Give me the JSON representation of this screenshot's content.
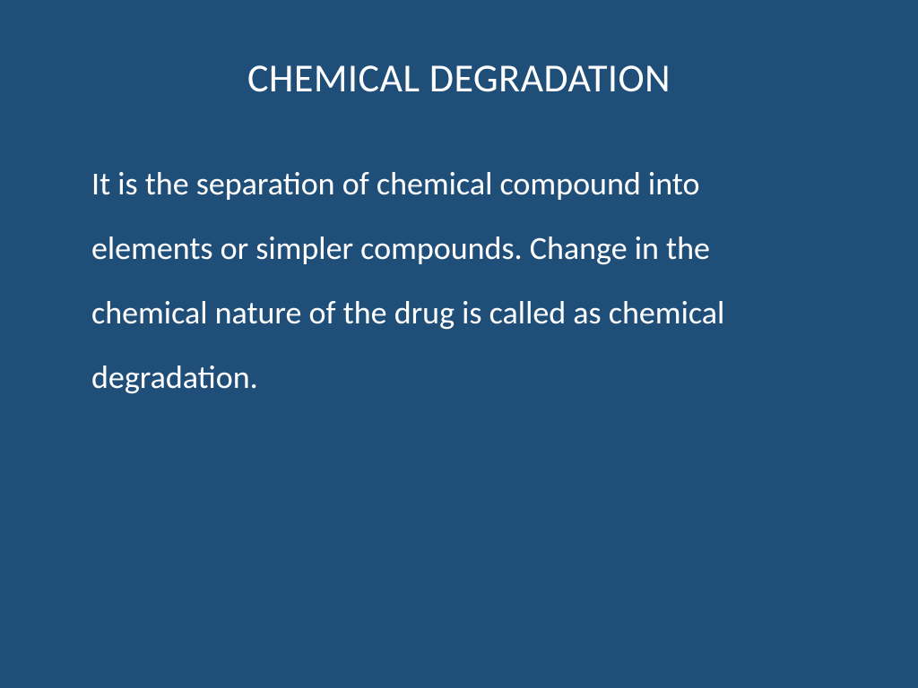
{
  "slide": {
    "background_color": "#1f4e79",
    "text_color": "#ffffff",
    "title": {
      "text": "CHEMICAL DEGRADATION",
      "fontsize": 44,
      "fontweight": 400,
      "align": "center"
    },
    "body": {
      "text": "It is the separation of chemical compound into elements or simpler compounds. Change in the chemical nature of the drug is called as chemical degradation.",
      "fontsize": 36,
      "fontweight": 400,
      "line_height": 2.0,
      "align": "left"
    }
  }
}
